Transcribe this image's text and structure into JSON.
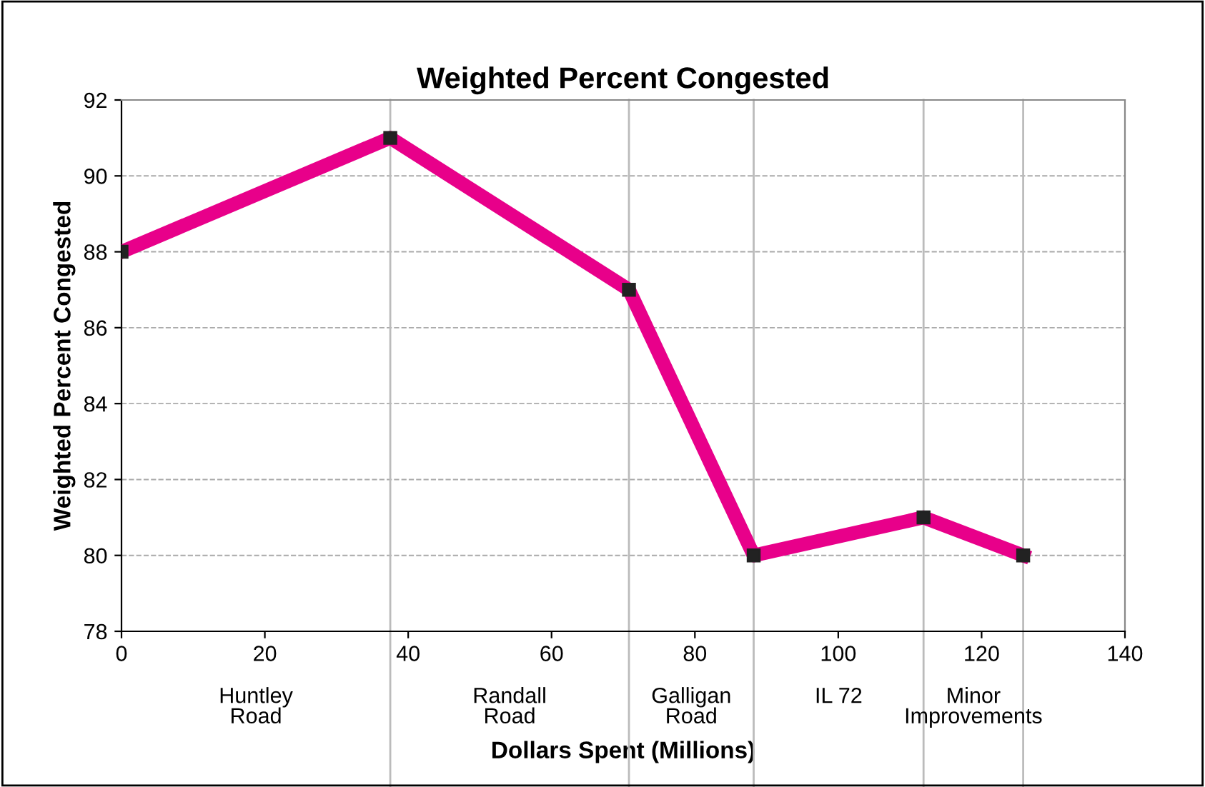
{
  "chart_data": {
    "type": "line",
    "title": "Weighted Percent Congested",
    "xlabel": "Dollars Spent (Millions)",
    "ylabel": "Weighted Percent Congested",
    "x": [
      0,
      37.5,
      70.8,
      88.2,
      111.9,
      125.8
    ],
    "series": [
      {
        "color": "#e8008a",
        "values": [
          88,
          91,
          87,
          80,
          81,
          80
        ]
      }
    ],
    "xlim": [
      0,
      140
    ],
    "xticks": [
      0,
      20,
      40,
      60,
      80,
      100,
      120,
      140
    ],
    "ylim": [
      78,
      92
    ],
    "yticks": [
      78,
      80,
      82,
      84,
      86,
      88,
      90,
      92
    ],
    "grid": "y",
    "marker": "square",
    "line_style": "solid",
    "legend": false,
    "ref_lines": [
      {
        "axis": "x",
        "value": 37.5,
        "color": "#bbbbbb"
      },
      {
        "axis": "x",
        "value": 70.8,
        "color": "#bbbbbb"
      },
      {
        "axis": "x",
        "value": 88.2,
        "color": "#bbbbbb"
      },
      {
        "axis": "x",
        "value": 111.9,
        "color": "#bbbbbb"
      },
      {
        "axis": "x",
        "value": 125.8,
        "color": "#bbbbbb"
      }
    ],
    "annotations": [
      "Huntley\nRoad",
      "Randall\nRoad",
      "Galligan\nRoad",
      "IL 72",
      "Minor\nImprovements"
    ]
  }
}
